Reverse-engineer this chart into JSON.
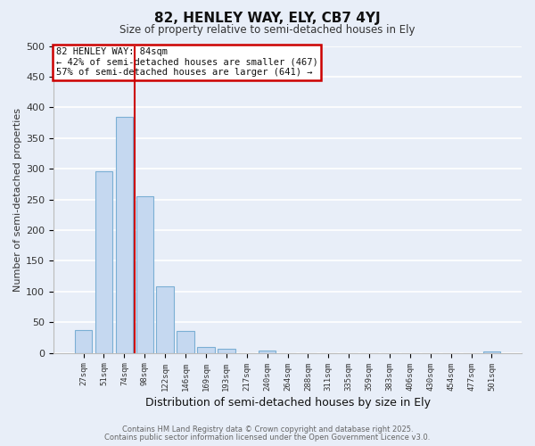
{
  "title": "82, HENLEY WAY, ELY, CB7 4YJ",
  "subtitle": "Size of property relative to semi-detached houses in Ely",
  "xlabel": "Distribution of semi-detached houses by size in Ely",
  "ylabel": "Number of semi-detached properties",
  "bar_labels": [
    "27sqm",
    "51sqm",
    "74sqm",
    "98sqm",
    "122sqm",
    "146sqm",
    "169sqm",
    "193sqm",
    "217sqm",
    "240sqm",
    "264sqm",
    "288sqm",
    "311sqm",
    "335sqm",
    "359sqm",
    "383sqm",
    "406sqm",
    "430sqm",
    "454sqm",
    "477sqm",
    "501sqm"
  ],
  "bar_values": [
    37,
    296,
    385,
    255,
    108,
    36,
    10,
    6,
    0,
    4,
    0,
    0,
    0,
    0,
    0,
    0,
    0,
    0,
    0,
    0,
    2
  ],
  "bar_color": "#c5d8f0",
  "bar_edge_color": "#7bafd4",
  "ylim": [
    0,
    500
  ],
  "yticks": [
    0,
    50,
    100,
    150,
    200,
    250,
    300,
    350,
    400,
    450,
    500
  ],
  "vline_x": 2.5,
  "vline_color": "#cc0000",
  "annotation_title": "82 HENLEY WAY: 84sqm",
  "annotation_line1": "← 42% of semi-detached houses are smaller (467)",
  "annotation_line2": "57% of semi-detached houses are larger (641) →",
  "annotation_box_color": "#cc0000",
  "bg_color": "#e8eef8",
  "grid_color": "#ffffff",
  "footer1": "Contains HM Land Registry data © Crown copyright and database right 2025.",
  "footer2": "Contains public sector information licensed under the Open Government Licence v3.0."
}
